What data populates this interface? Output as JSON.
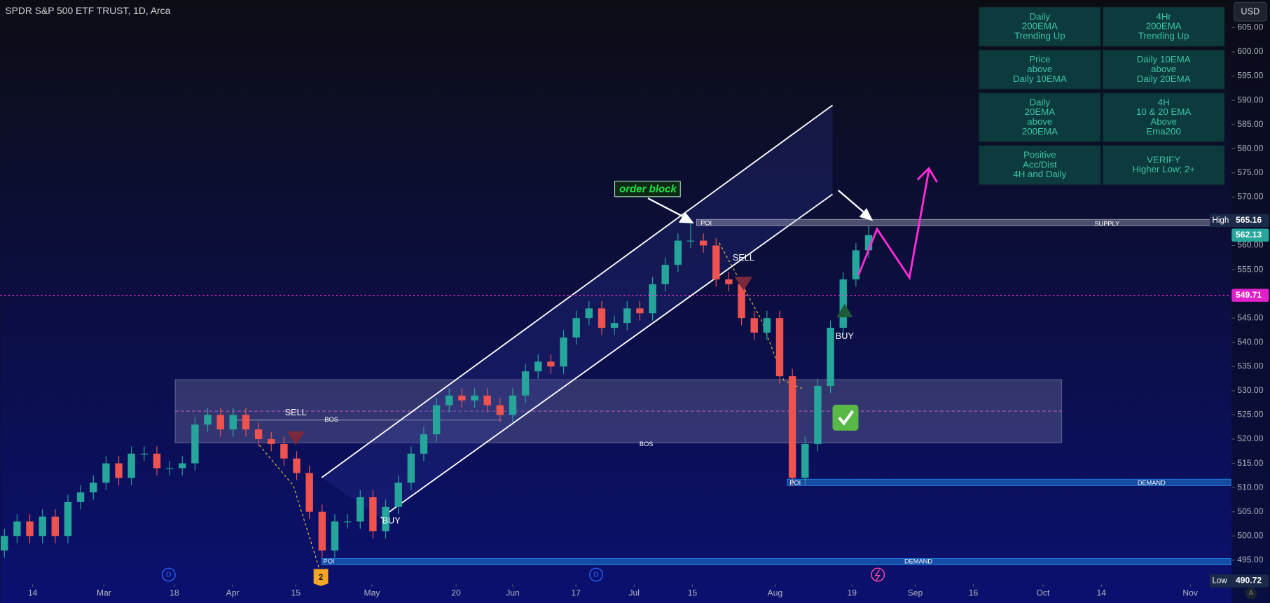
{
  "header": {
    "symbol": "SPDR S&P 500 ETF TRUST, 1D, Arca",
    "currency": "USD"
  },
  "table": {
    "rows": [
      [
        [
          "Daily",
          "200EMA",
          "Trending Up"
        ],
        [
          "4Hr",
          "200EMA",
          "Trending Up"
        ]
      ],
      [
        [
          "Price",
          "above",
          "Daily 10EMA"
        ],
        [
          "Daily 10EMA",
          "above",
          "Daily 20EMA"
        ]
      ],
      [
        [
          "Daily",
          "20EMA",
          "above",
          "200EMA"
        ],
        [
          "4H",
          "10 & 20 EMA",
          "Above",
          "Ema200"
        ]
      ],
      [
        [
          "Positive",
          "Acc/Dist",
          "4H and Daily"
        ],
        [
          "VERIFY",
          "Higher Low; 2+"
        ]
      ]
    ]
  },
  "annotations": {
    "order_block": "order block",
    "sell": "SELL",
    "buy": "BUY",
    "bos": "BOS",
    "poi": "POI",
    "supply": "SUPPLY",
    "demand": "DEMAND",
    "event": "2",
    "dividend": "D",
    "auto": "A"
  },
  "chart_data": {
    "type": "candlestick",
    "up_color": "#26a69a",
    "down_color": "#ef5350",
    "grid": false,
    "xlim": [
      -0.32,
      96.5
    ],
    "ylim": [
      490,
      610.7
    ],
    "xticks": [
      {
        "value": 2.23,
        "label": "14"
      },
      {
        "value": 7.83,
        "label": "Mar"
      },
      {
        "value": 13.38,
        "label": "18"
      },
      {
        "value": 17.96,
        "label": "Apr"
      },
      {
        "value": 22.93,
        "label": "15"
      },
      {
        "value": 28.92,
        "label": "May"
      },
      {
        "value": 35.54,
        "label": "20"
      },
      {
        "value": 40,
        "label": "Jun"
      },
      {
        "value": 44.97,
        "label": "17"
      },
      {
        "value": 49.55,
        "label": "Jul"
      },
      {
        "value": 54.14,
        "label": "15"
      },
      {
        "value": 60.64,
        "label": "Aug"
      },
      {
        "value": 66.69,
        "label": "19"
      },
      {
        "value": 71.66,
        "label": "Sep"
      },
      {
        "value": 76.24,
        "label": "16"
      },
      {
        "value": 81.72,
        "label": "Oct"
      },
      {
        "value": 86.31,
        "label": "14"
      },
      {
        "value": 93.31,
        "label": "Nov"
      }
    ],
    "yticks": [
      {
        "value": 495,
        "label": "495.00"
      },
      {
        "value": 500,
        "label": "500.00"
      },
      {
        "value": 505,
        "label": "505.00"
      },
      {
        "value": 510,
        "label": "510.00"
      },
      {
        "value": 515,
        "label": "515.00"
      },
      {
        "value": 520,
        "label": "520.00"
      },
      {
        "value": 525,
        "label": "525.00"
      },
      {
        "value": 530,
        "label": "530.00"
      },
      {
        "value": 535,
        "label": "535.00"
      },
      {
        "value": 540,
        "label": "540.00"
      },
      {
        "value": 545,
        "label": "545.00"
      },
      {
        "value": 550,
        "label": "550.00"
      },
      {
        "value": 555,
        "label": "555.00"
      },
      {
        "value": 560,
        "label": "560.00"
      },
      {
        "value": 565,
        "label": "565.00"
      },
      {
        "value": 570,
        "label": "570.00"
      },
      {
        "value": 575,
        "label": "575.00"
      },
      {
        "value": 580,
        "label": "580.00"
      },
      {
        "value": 585,
        "label": "585.00"
      },
      {
        "value": 590,
        "label": "590.00"
      },
      {
        "value": 595,
        "label": "595.00"
      },
      {
        "value": 600,
        "label": "600.00"
      },
      {
        "value": 605,
        "label": "605.00"
      }
    ],
    "open": [
      497,
      500,
      503,
      500,
      504,
      500,
      507,
      509,
      511,
      515,
      512,
      517,
      517,
      514,
      514,
      515,
      523,
      525,
      522,
      525,
      522,
      520,
      519,
      516,
      513,
      505,
      497,
      503,
      503,
      508,
      501,
      506,
      511,
      517,
      521,
      527,
      529,
      528,
      529,
      527,
      525,
      529,
      534,
      536,
      535,
      541,
      545,
      547,
      543,
      544,
      547,
      546,
      552,
      556,
      561,
      561,
      560,
      553,
      552,
      545,
      542,
      545,
      533,
      512,
      519,
      531,
      543,
      553,
      559
    ],
    "high": [
      501.5,
      504.5,
      504.5,
      505.5,
      505.5,
      508.5,
      510.5,
      512.5,
      516.5,
      516.5,
      518.5,
      518.5,
      518.5,
      515.5,
      516.5,
      524.5,
      526.5,
      526.5,
      526.5,
      526.5,
      523.5,
      521.5,
      520.5,
      517.5,
      514.5,
      506.5,
      504.5,
      504.5,
      509.5,
      509.5,
      507.5,
      512.5,
      518.5,
      522.5,
      528.5,
      530.5,
      530.5,
      530.5,
      530.5,
      528.5,
      530.5,
      535.5,
      537.5,
      537.5,
      542.5,
      546.5,
      548.5,
      548.5,
      545.5,
      548.5,
      548.5,
      553.5,
      557.5,
      562.5,
      565.16,
      562.5,
      561.5,
      554.5,
      553.5,
      546.5,
      546.5,
      546.5,
      534.5,
      520.5,
      532.5,
      544.5,
      554.5,
      560.5,
      564
    ],
    "low": [
      495.5,
      498.5,
      498.5,
      498.5,
      498.5,
      498.5,
      505.5,
      507.5,
      509.5,
      510.5,
      510.5,
      515.5,
      512.5,
      512.5,
      512.5,
      513.5,
      521.5,
      520.5,
      520.5,
      520.5,
      518.5,
      517.5,
      514.5,
      511.5,
      503.5,
      495.5,
      495.5,
      501.5,
      501.5,
      499.5,
      499.5,
      504.5,
      509.5,
      515.5,
      519.5,
      525.5,
      526.5,
      526.5,
      525.5,
      523.5,
      523.5,
      527.5,
      532.5,
      533.5,
      533.5,
      539.5,
      543.5,
      541.5,
      541.5,
      542.5,
      544.5,
      544.5,
      550.5,
      554.5,
      559.5,
      558.5,
      551.5,
      550.5,
      543.5,
      540.5,
      540.5,
      531.5,
      510.27,
      510.5,
      517.5,
      529.5,
      541.5,
      551.5,
      557.5
    ],
    "close": [
      500,
      503,
      500,
      504,
      500,
      507,
      509,
      511,
      515,
      512,
      517,
      517,
      514,
      514,
      515,
      523,
      525,
      522,
      525,
      522,
      520,
      519,
      516,
      513,
      505,
      497,
      503,
      503,
      508,
      501,
      506,
      511,
      517,
      521,
      527,
      529,
      528,
      529,
      527,
      525,
      529,
      534,
      536,
      535,
      541,
      545,
      547,
      543,
      544,
      547,
      546,
      552,
      556,
      561,
      561,
      560,
      553,
      552,
      545,
      542,
      545,
      533,
      512,
      519,
      531,
      543,
      553,
      559,
      562.13
    ],
    "high_tag": {
      "label": "High",
      "value": 565.16
    },
    "low_tag": {
      "label": "Low",
      "value": 490.72
    },
    "last_price": 562.13,
    "alert_price": 549.71
  }
}
